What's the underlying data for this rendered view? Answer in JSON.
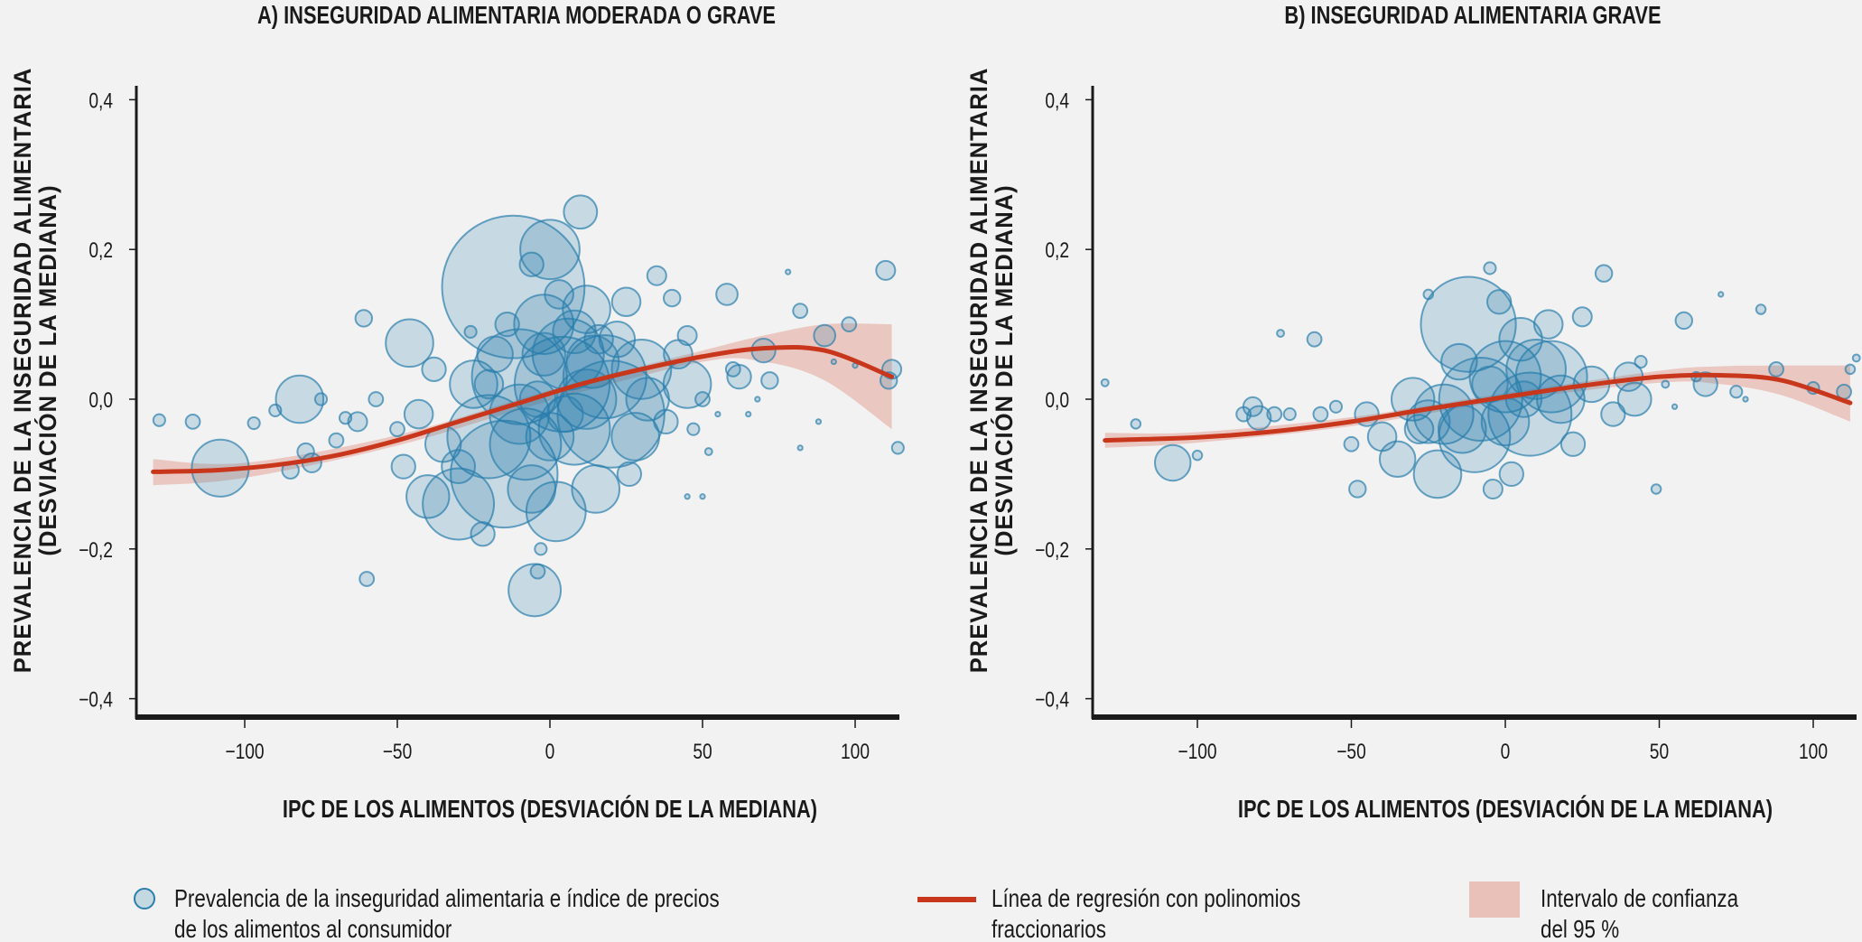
{
  "colors": {
    "bubble_fill": "#1f7aa8",
    "bubble_stroke": "#2b7fad",
    "regression": "#c8361c",
    "ci": "#e9c1b8",
    "axis": "#1a1a1a"
  },
  "chart_data": [
    {
      "type": "scatter",
      "title": "A) INSEGURIDAD ALIMENTARIA MODERADA O GRAVE",
      "xlabel": "IPC DE LOS ALIMENTOS (DESVIACIÓN DE LA MEDIANA)",
      "ylabel_lines": [
        "PREVALENCIA DE LA INSEGURIDAD ALIMENTARIA",
        "(DESVIACIÓN DE LA MEDIANA)"
      ],
      "xlim": [
        -135,
        115
      ],
      "ylim": [
        -0.42,
        0.42
      ],
      "xticks": [
        -100,
        -50,
        0,
        50,
        100
      ],
      "xtick_labels": [
        "−100",
        "−50",
        "0",
        "50",
        "100"
      ],
      "yticks": [
        0.4,
        0.2,
        0,
        -0.2,
        -0.4
      ],
      "ytick_labels": [
        "0,4",
        "0,2",
        "0,0",
        "−0,2",
        "−0,4"
      ],
      "grid": false,
      "points_xy_size": [
        [
          -128,
          -0.028,
          5
        ],
        [
          -117,
          -0.03,
          6
        ],
        [
          -108,
          -0.092,
          24
        ],
        [
          -97,
          -0.032,
          5
        ],
        [
          -90,
          -0.015,
          5
        ],
        [
          -85,
          -0.095,
          7
        ],
        [
          -82,
          0.0,
          20
        ],
        [
          -80,
          -0.07,
          7
        ],
        [
          -78,
          -0.085,
          8
        ],
        [
          -75,
          0.0,
          5
        ],
        [
          -70,
          -0.055,
          6
        ],
        [
          -67,
          -0.025,
          5
        ],
        [
          -63,
          -0.03,
          8
        ],
        [
          -60,
          -0.24,
          6
        ],
        [
          -61,
          0.108,
          7
        ],
        [
          -57,
          0.0,
          6
        ],
        [
          -50,
          -0.04,
          6
        ],
        [
          -48,
          -0.09,
          10
        ],
        [
          -46,
          0.075,
          20
        ],
        [
          -43,
          -0.02,
          12
        ],
        [
          -40,
          -0.13,
          18
        ],
        [
          -38,
          0.04,
          10
        ],
        [
          -35,
          -0.06,
          15
        ],
        [
          -30,
          -0.14,
          30
        ],
        [
          -25,
          0.02,
          20
        ],
        [
          -22,
          -0.18,
          10
        ],
        [
          -20,
          -0.05,
          35
        ],
        [
          -15,
          -0.1,
          45
        ],
        [
          -12,
          0.15,
          60
        ],
        [
          -10,
          0.03,
          40
        ],
        [
          -8,
          -0.06,
          30
        ],
        [
          -6,
          0.18,
          10
        ],
        [
          -5,
          -0.255,
          22
        ],
        [
          -4,
          -0.23,
          6
        ],
        [
          -3,
          -0.2,
          5
        ],
        [
          -2,
          0.1,
          25
        ],
        [
          0,
          0.2,
          25
        ],
        [
          2,
          -0.15,
          25
        ],
        [
          4,
          0.02,
          40
        ],
        [
          6,
          0.06,
          30
        ],
        [
          8,
          -0.04,
          30
        ],
        [
          10,
          0.25,
          14
        ],
        [
          12,
          0.12,
          20
        ],
        [
          15,
          -0.12,
          20
        ],
        [
          18,
          0.03,
          35
        ],
        [
          20,
          -0.02,
          45
        ],
        [
          22,
          0.08,
          15
        ],
        [
          25,
          0.13,
          12
        ],
        [
          28,
          -0.05,
          20
        ],
        [
          30,
          0.04,
          25
        ],
        [
          32,
          0.0,
          18
        ],
        [
          35,
          0.165,
          8
        ],
        [
          38,
          -0.03,
          10
        ],
        [
          40,
          0.135,
          7
        ],
        [
          42,
          0.06,
          12
        ],
        [
          45,
          0.085,
          8
        ],
        [
          45,
          0.02,
          20
        ],
        [
          47,
          -0.04,
          5
        ],
        [
          50,
          0.0,
          6
        ],
        [
          52,
          -0.07,
          3
        ],
        [
          55,
          -0.02,
          2
        ],
        [
          58,
          0.14,
          9
        ],
        [
          60,
          0.04,
          6
        ],
        [
          62,
          0.03,
          10
        ],
        [
          65,
          -0.02,
          2
        ],
        [
          68,
          0.0,
          2
        ],
        [
          70,
          0.065,
          10
        ],
        [
          72,
          0.025,
          7
        ],
        [
          78,
          0.17,
          2
        ],
        [
          82,
          0.118,
          6
        ],
        [
          82,
          -0.065,
          2
        ],
        [
          88,
          -0.03,
          2
        ],
        [
          90,
          0.085,
          9
        ],
        [
          93,
          0.05,
          2
        ],
        [
          98,
          0.1,
          6
        ],
        [
          100,
          0.045,
          2
        ],
        [
          110,
          0.172,
          8
        ],
        [
          112,
          0.04,
          8
        ],
        [
          111,
          0.025,
          7
        ],
        [
          114,
          -0.065,
          5
        ],
        [
          45,
          -0.13,
          2
        ],
        [
          50,
          -0.13,
          2
        ],
        [
          -26,
          0.09,
          5
        ],
        [
          -14,
          0.1,
          10
        ],
        [
          3,
          0.14,
          12
        ],
        [
          -18,
          0.06,
          15
        ],
        [
          14,
          0.05,
          22
        ],
        [
          -6,
          -0.12,
          20
        ],
        [
          26,
          -0.1,
          10
        ],
        [
          -30,
          -0.09,
          14
        ],
        [
          0,
          -0.05,
          20
        ],
        [
          -2,
          0.06,
          18
        ],
        [
          8,
          0.09,
          18
        ],
        [
          -10,
          -0.02,
          25
        ],
        [
          12,
          0.0,
          25
        ],
        [
          -4,
          0.0,
          15
        ],
        [
          5,
          -0.02,
          15
        ],
        [
          16,
          0.08,
          12
        ],
        [
          -20,
          0.02,
          12
        ]
      ],
      "regression": [
        [
          -130,
          -0.097
        ],
        [
          -110,
          -0.095
        ],
        [
          -90,
          -0.088
        ],
        [
          -70,
          -0.075
        ],
        [
          -50,
          -0.055
        ],
        [
          -30,
          -0.03
        ],
        [
          -10,
          -0.005
        ],
        [
          10,
          0.02
        ],
        [
          30,
          0.04
        ],
        [
          50,
          0.057
        ],
        [
          70,
          0.068
        ],
        [
          90,
          0.065
        ],
        [
          112,
          0.03
        ]
      ],
      "ci_lower": [
        [
          -130,
          -0.115
        ],
        [
          -100,
          -0.105
        ],
        [
          -50,
          -0.062
        ],
        [
          0,
          -0.002
        ],
        [
          50,
          0.05
        ],
        [
          70,
          0.05
        ],
        [
          90,
          0.025
        ],
        [
          112,
          -0.04
        ]
      ],
      "ci_upper": [
        [
          -130,
          -0.08
        ],
        [
          -100,
          -0.085
        ],
        [
          -50,
          -0.048
        ],
        [
          0,
          0.012
        ],
        [
          50,
          0.065
        ],
        [
          70,
          0.085
        ],
        [
          90,
          0.1
        ],
        [
          112,
          0.1
        ]
      ]
    },
    {
      "type": "scatter",
      "title": "B) INSEGURIDAD ALIMENTARIA GRAVE",
      "xlabel": "IPC DE LOS ALIMENTOS (DESVIACIÓN DE LA MEDIANA)",
      "ylabel_lines": [
        "PREVALENCIA DE LA INSEGURIDAD ALIMENTARIA",
        "(DESVIACIÓN DE LA MEDIANA)"
      ],
      "xlim": [
        -135,
        115
      ],
      "ylim": [
        -0.42,
        0.42
      ],
      "xticks": [
        -100,
        -50,
        0,
        50,
        100
      ],
      "xtick_labels": [
        "−100",
        "−50",
        "0",
        "50",
        "100"
      ],
      "yticks": [
        0.4,
        0.2,
        0,
        -0.2,
        -0.4
      ],
      "ytick_labels": [
        "0,4",
        "0,2",
        "0,0",
        "−0,2",
        "−0,4"
      ],
      "grid": false,
      "points_xy_size": [
        [
          -130,
          0.022,
          3
        ],
        [
          -120,
          -0.033,
          4
        ],
        [
          -108,
          -0.085,
          15
        ],
        [
          -100,
          -0.075,
          4
        ],
        [
          -85,
          -0.02,
          6
        ],
        [
          -82,
          -0.01,
          8
        ],
        [
          -80,
          -0.025,
          10
        ],
        [
          -75,
          -0.02,
          6
        ],
        [
          -73,
          0.088,
          3
        ],
        [
          -70,
          -0.02,
          5
        ],
        [
          -62,
          0.08,
          6
        ],
        [
          -60,
          -0.02,
          6
        ],
        [
          -55,
          -0.01,
          5
        ],
        [
          -50,
          -0.06,
          6
        ],
        [
          -48,
          -0.12,
          7
        ],
        [
          -45,
          -0.02,
          10
        ],
        [
          -40,
          -0.05,
          12
        ],
        [
          -35,
          -0.08,
          15
        ],
        [
          -30,
          0.0,
          18
        ],
        [
          -28,
          -0.04,
          12
        ],
        [
          -25,
          0.14,
          4
        ],
        [
          -22,
          -0.1,
          20
        ],
        [
          -20,
          -0.02,
          25
        ],
        [
          -15,
          0.05,
          15
        ],
        [
          -12,
          0.1,
          40
        ],
        [
          -10,
          -0.05,
          30
        ],
        [
          -8,
          0.0,
          35
        ],
        [
          -5,
          0.175,
          5
        ],
        [
          -4,
          -0.12,
          8
        ],
        [
          -2,
          0.13,
          10
        ],
        [
          0,
          0.03,
          30
        ],
        [
          2,
          -0.1,
          10
        ],
        [
          5,
          0.08,
          18
        ],
        [
          8,
          -0.02,
          35
        ],
        [
          10,
          0.04,
          25
        ],
        [
          14,
          0.1,
          12
        ],
        [
          18,
          0.0,
          20
        ],
        [
          22,
          -0.06,
          10
        ],
        [
          25,
          0.11,
          8
        ],
        [
          28,
          0.02,
          15
        ],
        [
          32,
          0.168,
          7
        ],
        [
          35,
          -0.02,
          10
        ],
        [
          40,
          0.03,
          12
        ],
        [
          42,
          0.0,
          14
        ],
        [
          44,
          0.05,
          5
        ],
        [
          49,
          -0.12,
          4
        ],
        [
          52,
          0.02,
          3
        ],
        [
          55,
          -0.01,
          2
        ],
        [
          58,
          0.105,
          7
        ],
        [
          62,
          0.03,
          4
        ],
        [
          65,
          0.02,
          10
        ],
        [
          70,
          0.14,
          2
        ],
        [
          75,
          0.01,
          5
        ],
        [
          78,
          0.0,
          2
        ],
        [
          83,
          0.12,
          4
        ],
        [
          88,
          0.04,
          6
        ],
        [
          100,
          0.015,
          5
        ],
        [
          110,
          0.01,
          6
        ],
        [
          112,
          0.04,
          4
        ],
        [
          114,
          0.055,
          3
        ],
        [
          -14,
          -0.04,
          20
        ],
        [
          15,
          0.03,
          30
        ],
        [
          -25,
          -0.03,
          18
        ],
        [
          0,
          -0.03,
          20
        ],
        [
          -5,
          0.02,
          15
        ],
        [
          6,
          0.0,
          15
        ]
      ],
      "regression": [
        [
          -130,
          -0.055
        ],
        [
          -100,
          -0.051
        ],
        [
          -75,
          -0.043
        ],
        [
          -50,
          -0.03
        ],
        [
          -25,
          -0.013
        ],
        [
          0,
          0.003
        ],
        [
          25,
          0.018
        ],
        [
          50,
          0.03
        ],
        [
          70,
          0.032
        ],
        [
          90,
          0.025
        ],
        [
          112,
          -0.005
        ]
      ],
      "ci_lower": [
        [
          -130,
          -0.065
        ],
        [
          -100,
          -0.058
        ],
        [
          -50,
          -0.036
        ],
        [
          0,
          -0.002
        ],
        [
          50,
          0.022
        ],
        [
          70,
          0.02
        ],
        [
          90,
          0.005
        ],
        [
          112,
          -0.03
        ]
      ],
      "ci_upper": [
        [
          -130,
          -0.045
        ],
        [
          -100,
          -0.044
        ],
        [
          -50,
          -0.024
        ],
        [
          0,
          0.008
        ],
        [
          50,
          0.038
        ],
        [
          70,
          0.044
        ],
        [
          90,
          0.045
        ],
        [
          112,
          0.045
        ]
      ]
    }
  ],
  "legend": {
    "bubbles_line1": "Prevalencia de la inseguridad alimentaria e índice de precios",
    "bubbles_line2": "de los alimentos al consumidor",
    "line_line1": "Línea de regresión con polinomios",
    "line_line2": "fraccionarios",
    "ci_line1": "Intervalo de confianza",
    "ci_line2": "del 95 %",
    "placement": "bottom"
  }
}
